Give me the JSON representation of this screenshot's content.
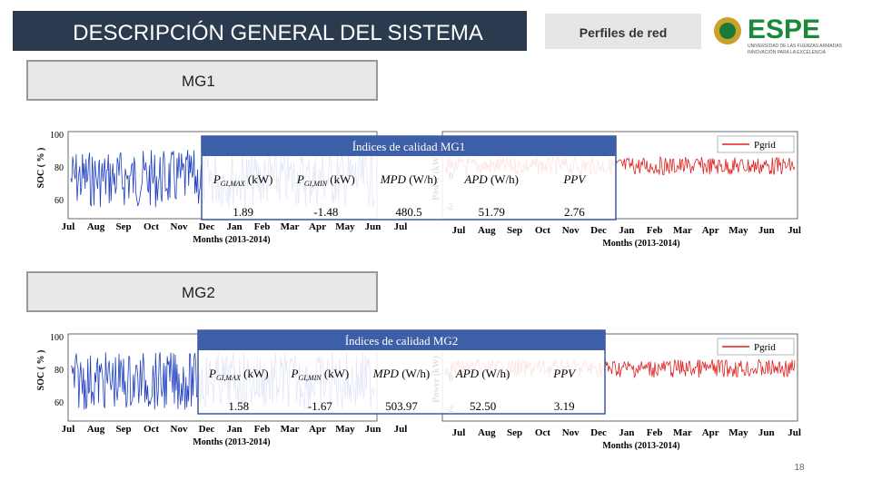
{
  "header": {
    "title": "DESCRIPCIÓN GENERAL DEL SISTEMA",
    "button": "Perfiles de red",
    "logo": {
      "name": "ESPE",
      "line1": "UNIVERSIDAD DE LAS FUERZAS ARMADAS",
      "line2": "INNOVACIÓN PARA LA EXCELENCIA"
    }
  },
  "sections": [
    {
      "label": "MG1",
      "soc_chart": {
        "ylabel": "SOC ( % )",
        "yticks": [
          "100",
          "80",
          "60"
        ],
        "months": [
          "Jul",
          "Aug",
          "Sep",
          "Oct",
          "Nov",
          "Dec",
          "Jan",
          "Feb",
          "Mar",
          "Apr",
          "May",
          "Jun",
          "Jul"
        ],
        "xlabel": "Months (2013-2014)"
      },
      "grid_chart": {
        "ylabel": "Power (kW)",
        "yticks": [
          "0",
          "-2"
        ],
        "legend": "Pgrid",
        "months": [
          "Jul",
          "Aug",
          "Sep",
          "Oct",
          "Nov",
          "Dec",
          "Jan",
          "Feb",
          "Mar",
          "Apr",
          "May",
          "Jun",
          "Jul"
        ],
        "xlabel": "Months (2013-2014)"
      },
      "table": {
        "title": "Índices de calidad MG1",
        "headers": [
          {
            "symbol": "P",
            "sub": "GI,MAX",
            "unit": " (kW)"
          },
          {
            "symbol": "P",
            "sub": "GI,MIN",
            "unit": " (kW)"
          },
          {
            "symbol": "MPD",
            "unit": " (W/h)"
          },
          {
            "symbol": "APD",
            "unit": " (W/h)"
          },
          {
            "symbol": "PPV"
          }
        ],
        "values": [
          "1.89",
          "-1.48",
          "480.5",
          "51.79",
          "2.76"
        ]
      }
    },
    {
      "label": "MG2",
      "soc_chart": {
        "ylabel": "SOC ( % )",
        "yticks": [
          "100",
          "80",
          "60"
        ],
        "months": [
          "Jul",
          "Aug",
          "Sep",
          "Oct",
          "Nov",
          "Dec",
          "Jan",
          "Feb",
          "Mar",
          "Apr",
          "May",
          "Jun",
          "Jul"
        ],
        "xlabel": "Months (2013-2014)"
      },
      "grid_chart": {
        "ylabel": "Power (kW)",
        "yticks": [
          "0",
          "-2"
        ],
        "legend": "Pgrid",
        "months": [
          "Jul",
          "Aug",
          "Sep",
          "Oct",
          "Nov",
          "Dec",
          "Jan",
          "Feb",
          "Mar",
          "Apr",
          "May",
          "Jun",
          "Jul"
        ],
        "xlabel": "Months (2013-2014)"
      },
      "table": {
        "title": "Índices de calidad MG2",
        "headers": [
          {
            "symbol": "P",
            "sub": "GI,MAX",
            "unit": " (kW)"
          },
          {
            "symbol": "P",
            "sub": "GI,MIN",
            "unit": " (kW)"
          },
          {
            "symbol": "MPD",
            "unit": " (W/h)"
          },
          {
            "symbol": "APD",
            "unit": " (W/h)"
          },
          {
            "symbol": "PPV"
          }
        ],
        "values": [
          "1.58",
          "-1.67",
          "503.97",
          "52.50",
          "3.19"
        ]
      }
    }
  ],
  "page_number": "18"
}
